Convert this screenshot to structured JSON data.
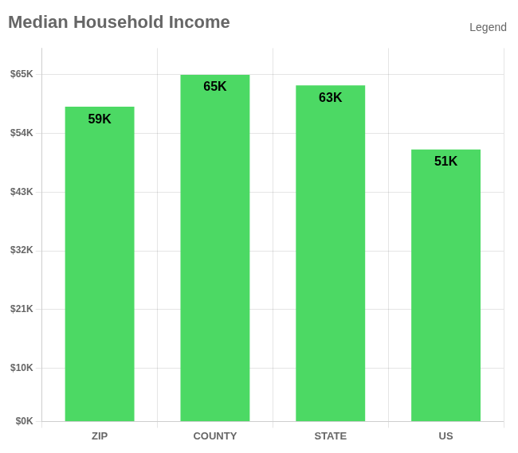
{
  "chart_data": {
    "type": "bar",
    "title": "Median Household Income",
    "categories": [
      "ZIP",
      "COUNTY",
      "STATE",
      "US"
    ],
    "values": [
      59000,
      65000,
      63000,
      51000
    ],
    "value_labels": [
      "59K",
      "65K",
      "63K",
      "51K"
    ],
    "data_labels": true,
    "color": "#4cd964",
    "ylim": [
      0,
      70000
    ],
    "yticks": [
      {
        "value": 0,
        "label": "$0K"
      },
      {
        "value": 10000,
        "label": "$10K"
      },
      {
        "value": 21000,
        "label": "$21K"
      },
      {
        "value": 32000,
        "label": "$32K"
      },
      {
        "value": 43000,
        "label": "$43K"
      },
      {
        "value": 54000,
        "label": "$54K"
      },
      {
        "value": 65000,
        "label": "$65K"
      }
    ],
    "grid": true,
    "annotations": [
      "Legend"
    ]
  }
}
